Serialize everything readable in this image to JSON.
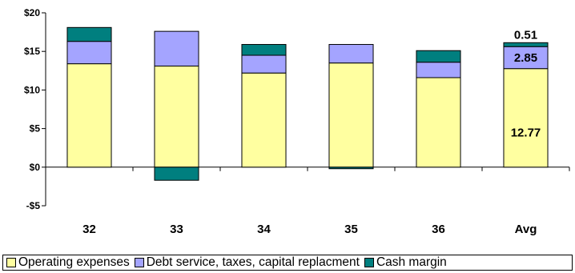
{
  "chart_data": {
    "type": "bar",
    "stacked": true,
    "title": "",
    "xlabel": "",
    "ylabel": "",
    "categories": [
      "32",
      "33",
      "34",
      "35",
      "36",
      "Avg"
    ],
    "ylim": [
      -5,
      20
    ],
    "yticks": [
      20,
      15,
      10,
      5,
      0,
      -5
    ],
    "ytick_labels": [
      "$20",
      "$15",
      "$10",
      "$5",
      "$0",
      "-$5"
    ],
    "grid": false,
    "legend_position": "bottom",
    "series": [
      {
        "name": "Operating expenses",
        "color": "#FFFFA0",
        "values": [
          13.4,
          13.1,
          12.2,
          13.5,
          11.6,
          12.77
        ]
      },
      {
        "name": "Debt service, taxes, capital replacment",
        "color": "#A4A4FF",
        "values": [
          2.9,
          4.5,
          2.3,
          2.4,
          2.0,
          2.85
        ]
      },
      {
        "name": "Cash margin",
        "color": "#007F7F",
        "values": [
          1.8,
          -1.7,
          1.4,
          -0.2,
          1.5,
          0.51
        ]
      }
    ],
    "data_labels": [
      {
        "category": "Avg",
        "series": "Operating expenses",
        "text": "12.77"
      },
      {
        "category": "Avg",
        "series": "Debt service, taxes, capital replacment",
        "text": "2.85"
      },
      {
        "category": "Avg",
        "series": "Cash margin",
        "text": "0.51"
      }
    ]
  }
}
